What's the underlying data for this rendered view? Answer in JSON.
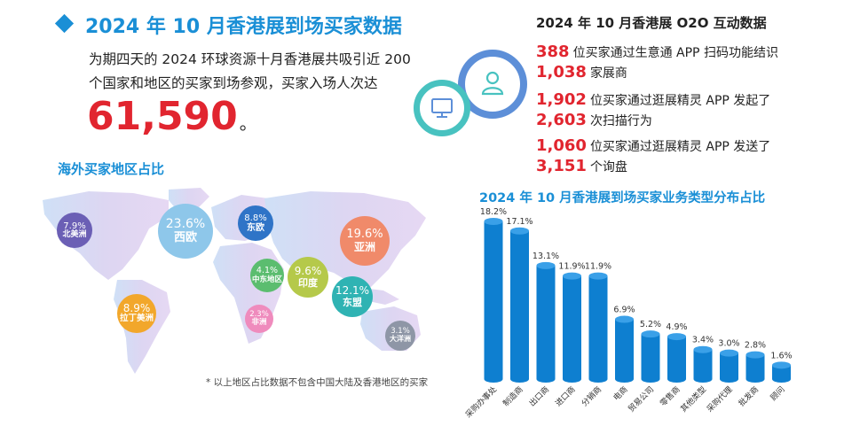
{
  "headline": {
    "title": "2024 年 10 月香港展到场买家数据",
    "intro": "为期四天的 2024 环球资源十月香港展共吸引近 200 个国家和地区的买家到场参观，买家入场人次达",
    "total_visits": "61,590",
    "total_suffix": "。"
  },
  "map": {
    "title": "海外买家地区占比",
    "footnote": "* 以上地区占比数据不包含中国大陆及香港地区的买家",
    "regions": [
      {
        "pct": "23.6%",
        "name": "西欧",
        "color": "#8ec7ea"
      },
      {
        "pct": "8.8%",
        "name": "东欧",
        "color": "#2f74c7"
      },
      {
        "pct": "7.9%",
        "name": "北美洲",
        "color": "#6b5fb5"
      },
      {
        "pct": "19.6%",
        "name": "亚洲",
        "color": "#f08a6a"
      },
      {
        "pct": "4.1%",
        "name": "中东地区",
        "color": "#5bbd6f"
      },
      {
        "pct": "9.6%",
        "name": "印度",
        "color": "#b5c94a"
      },
      {
        "pct": "12.1%",
        "name": "东盟",
        "color": "#2fb3b3"
      },
      {
        "pct": "8.9%",
        "name": "拉丁美洲",
        "color": "#f2a72b"
      },
      {
        "pct": "2.3%",
        "name": "非洲",
        "color": "#ef8bbd"
      },
      {
        "pct": "3.1%",
        "name": "大洋洲",
        "color": "#8e96a6"
      }
    ]
  },
  "o2o": {
    "title": "2024 年 10 月香港展 O2O 互动数据",
    "lines": [
      {
        "num": "388",
        "text": "位买家通过生意通 APP 扫码功能结识"
      },
      {
        "num": "1,038",
        "text": "家展商"
      },
      {
        "num": "1,902",
        "text": "位买家通过逛展精灵 APP 发起了"
      },
      {
        "num": "2,603",
        "text": "次扫描行为"
      },
      {
        "num": "1,060",
        "text": "位买家通过逛展精灵 APP 发送了"
      },
      {
        "num": "3,151",
        "text": "个询盘"
      }
    ],
    "icons": {
      "outer": "user-icon",
      "inner": "monitor-icon"
    }
  },
  "chart_data": {
    "type": "bar",
    "title": "2024 年 10 月香港展到场买家业务类型分布占比",
    "categories": [
      "采购办事处",
      "制造商",
      "出口商",
      "进口商",
      "分销商",
      "电商",
      "贸易公司",
      "零售商",
      "其他类型",
      "采购代理",
      "批发商",
      "顾问"
    ],
    "values": [
      18.2,
      17.1,
      13.1,
      11.9,
      11.9,
      6.9,
      5.2,
      4.9,
      3.4,
      3.0,
      2.8,
      1.6
    ],
    "value_labels": [
      "18.2%",
      "17.1%",
      "13.1%",
      "11.9%",
      "11.9%",
      "6.9%",
      "5.2%",
      "4.9%",
      "3.4%",
      "3.0%",
      "2.8%",
      "1.6%"
    ],
    "unit": "%",
    "bar_color": "#0e7fd0",
    "bar_top_color": "#3aa0e8",
    "grid": false,
    "legend": "none"
  }
}
